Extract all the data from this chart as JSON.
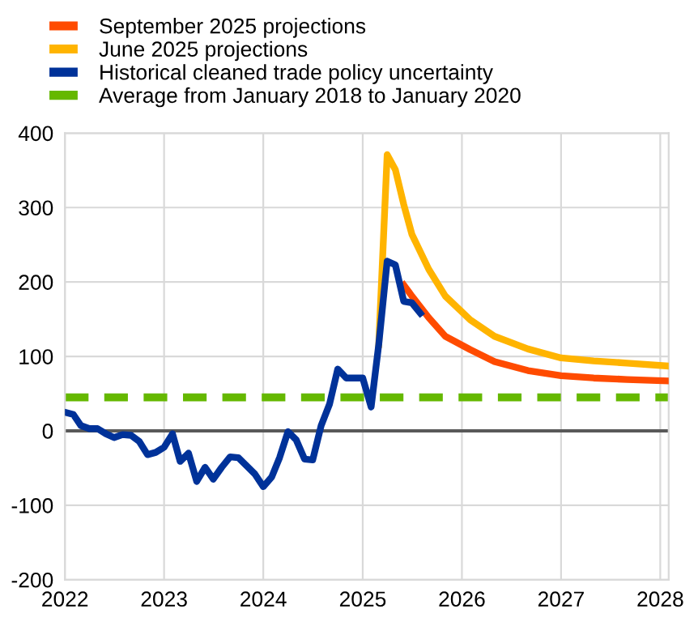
{
  "chart_data": {
    "type": "line",
    "x": [
      "2022-01",
      "2022-02",
      "2022-03",
      "2022-04",
      "2022-05",
      "2022-06",
      "2022-07",
      "2022-08",
      "2022-09",
      "2022-10",
      "2022-11",
      "2022-12",
      "2023-01",
      "2023-02",
      "2023-03",
      "2023-04",
      "2023-05",
      "2023-06",
      "2023-07",
      "2023-08",
      "2023-09",
      "2023-10",
      "2023-11",
      "2023-12",
      "2024-01",
      "2024-02",
      "2024-03",
      "2024-04",
      "2024-05",
      "2024-06",
      "2024-07",
      "2024-08",
      "2024-09",
      "2024-10",
      "2024-11",
      "2024-12",
      "2025-01",
      "2025-02",
      "2025-03",
      "2025-04",
      "2025-05",
      "2025-06",
      "2025-07",
      "2025-08"
    ],
    "series": [
      {
        "name": "September 2025 projections",
        "color": "#ff4b00",
        "x": [
          "2025-06",
          "2025-07",
          "2025-09",
          "2025-11",
          "2026-02",
          "2026-05",
          "2026-09",
          "2027-01",
          "2027-05",
          "2027-09",
          "2028-02"
        ],
        "values": [
          196,
          181,
          152,
          127,
          109,
          93,
          81,
          74,
          71,
          69,
          67
        ]
      },
      {
        "name": "June 2025 projections",
        "color": "#ffb400",
        "x": [
          "2025-03",
          "2025-04",
          "2025-05",
          "2025-06",
          "2025-07",
          "2025-09",
          "2025-11",
          "2026-02",
          "2026-05",
          "2026-09",
          "2027-01",
          "2027-05",
          "2027-09",
          "2028-02"
        ],
        "values": [
          116,
          371,
          351,
          304,
          264,
          217,
          181,
          149,
          127,
          110,
          98,
          94,
          91,
          87
        ]
      },
      {
        "name": "Historical cleaned trade policy uncertainty",
        "color": "#003299",
        "values": [
          25,
          22,
          7,
          3,
          3,
          -4,
          -9,
          -5,
          -6,
          -14,
          -32,
          -29,
          -22,
          -4,
          -41,
          -30,
          -68,
          -49,
          -65,
          -49,
          -35,
          -36,
          -47,
          -58,
          -75,
          -62,
          -36,
          -1,
          -12,
          -38,
          -39,
          7,
          36,
          83,
          71,
          71,
          71,
          32,
          116,
          228,
          223,
          174,
          172,
          158
        ]
      }
    ],
    "ref_lines": [
      {
        "axis": "y",
        "value": 45,
        "label": "Average from January 2018 to January 2020",
        "color": "#65b800",
        "line_style": "dashed"
      },
      {
        "axis": "y",
        "value": 0,
        "label": null,
        "color": "#595959",
        "line_style": "solid"
      }
    ],
    "xlim": [
      "2022-01",
      "2028-02"
    ],
    "xticks": [
      {
        "value": "2022-01",
        "label": "2022"
      },
      {
        "value": "2023-01",
        "label": "2023"
      },
      {
        "value": "2024-01",
        "label": "2024"
      },
      {
        "value": "2025-01",
        "label": "2025"
      },
      {
        "value": "2026-01",
        "label": "2026"
      },
      {
        "value": "2027-01",
        "label": "2027"
      },
      {
        "value": "2028-01",
        "label": "2028"
      }
    ],
    "ylim": [
      -200,
      400
    ],
    "yticks": [
      -200,
      -100,
      0,
      100,
      200,
      300,
      400
    ],
    "grid": true,
    "legend": "top",
    "line_style": "solid",
    "marker": "none"
  }
}
